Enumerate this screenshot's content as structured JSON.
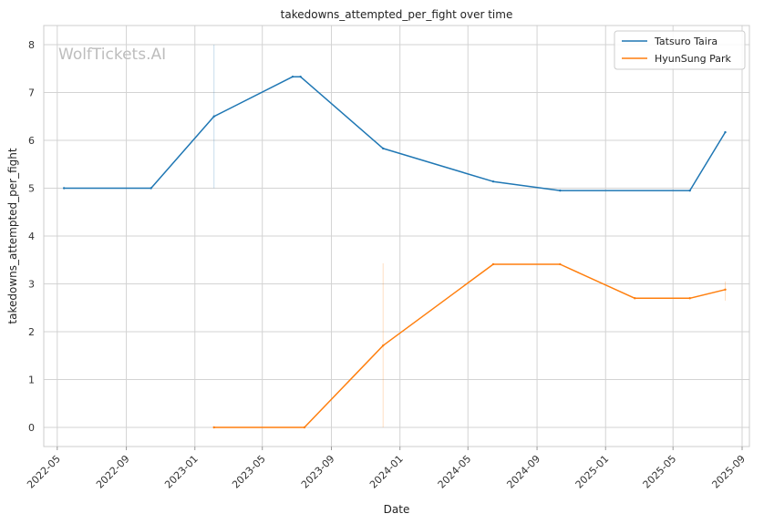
{
  "chart_data": {
    "type": "line",
    "title": "takedowns_attempted_per_fight over time",
    "xlabel": "Date",
    "ylabel": "takedowns_attempted_per_fight",
    "watermark": "WolfTickets.AI",
    "x_ticks": [
      "2022-05",
      "2022-09",
      "2023-01",
      "2023-05",
      "2023-09",
      "2024-01",
      "2024-05",
      "2024-09",
      "2025-01",
      "2025-05",
      "2025-09"
    ],
    "y_ticks": [
      "0",
      "1",
      "2",
      "3",
      "4",
      "5",
      "6",
      "7",
      "8"
    ],
    "xlim": [
      "2022-04-07",
      "2025-09-14"
    ],
    "ylim": [
      -0.4,
      8.4
    ],
    "grid": true,
    "legend_position": "top-right",
    "series": [
      {
        "name": "Tatsuro Taira",
        "color": "#1f77b4",
        "points": [
          {
            "x": "2022-05-13",
            "y": 5.0
          },
          {
            "x": "2022-10-15",
            "y": 5.0
          },
          {
            "x": "2023-02-04",
            "y": 6.5
          },
          {
            "x": "2023-06-24",
            "y": 7.33
          },
          {
            "x": "2023-07-08",
            "y": 7.33
          },
          {
            "x": "2023-12-02",
            "y": 5.83
          },
          {
            "x": "2024-06-15",
            "y": 5.14
          },
          {
            "x": "2024-10-12",
            "y": 4.95
          },
          {
            "x": "2025-05-31",
            "y": 4.95
          },
          {
            "x": "2025-08-02",
            "y": 6.17
          }
        ],
        "error_bars": [
          {
            "x": "2023-02-04",
            "low": 5.0,
            "high": 8.0
          }
        ]
      },
      {
        "name": "HyunSung Park",
        "color": "#ff7f0e",
        "points": [
          {
            "x": "2023-02-04",
            "y": 0.0
          },
          {
            "x": "2023-07-15",
            "y": 0.0
          },
          {
            "x": "2023-12-02",
            "y": 1.71
          },
          {
            "x": "2024-06-15",
            "y": 3.41
          },
          {
            "x": "2024-10-12",
            "y": 3.41
          },
          {
            "x": "2025-02-22",
            "y": 2.7
          },
          {
            "x": "2025-05-31",
            "y": 2.7
          },
          {
            "x": "2025-08-02",
            "y": 2.88
          }
        ],
        "error_bars": [
          {
            "x": "2023-12-02",
            "low": 0.0,
            "high": 3.43
          },
          {
            "x": "2025-08-02",
            "low": 2.65,
            "high": 3.05
          }
        ]
      }
    ]
  }
}
